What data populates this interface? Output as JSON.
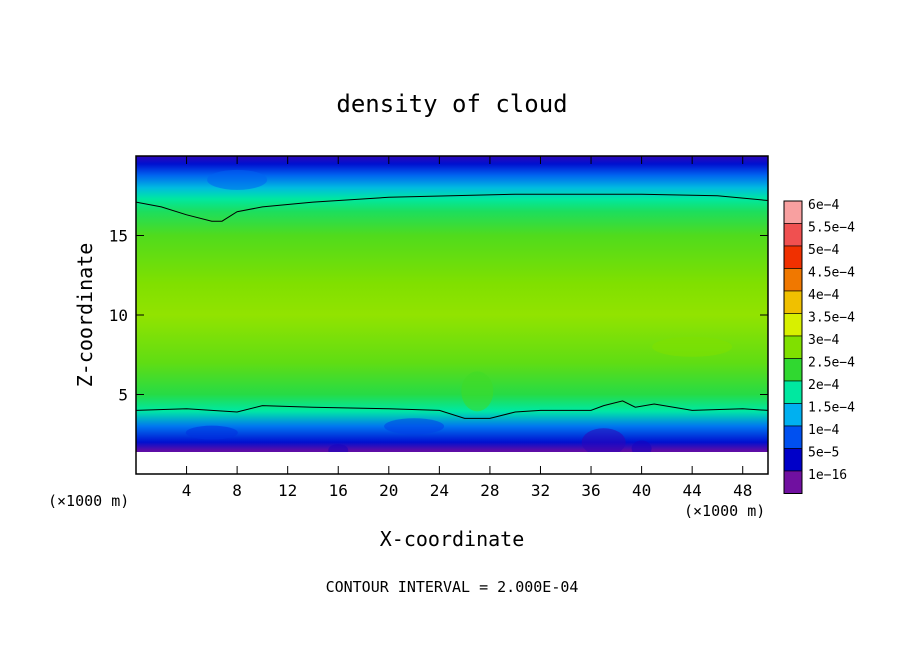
{
  "chart_data": {
    "type": "heatmap",
    "title": "density of cloud",
    "xlabel": "X-coordinate",
    "ylabel": "Z-coordinate",
    "x_unit_left": "(×1000 m)",
    "x_unit_right": "(×1000 m)",
    "footer": "CONTOUR INTERVAL = 2.000E-04",
    "xlim": [
      0,
      50
    ],
    "ylim": [
      0,
      20
    ],
    "x_ticks": [
      4,
      8,
      12,
      16,
      20,
      24,
      28,
      32,
      36,
      40,
      44,
      48
    ],
    "y_ticks": [
      5,
      10,
      15
    ],
    "grid": false,
    "legend_position": "right",
    "colorbar": {
      "labels": [
        "6e−4",
        "5.5e−4",
        "5e−4",
        "4.5e−4",
        "4e−4",
        "3.5e−4",
        "3e−4",
        "2.5e−4",
        "2e−4",
        "1.5e−4",
        "1e−4",
        "5e−5",
        "1e−16"
      ],
      "colors": [
        "#f8a0a0",
        "#f05050",
        "#f03000",
        "#f07800",
        "#f0c000",
        "#d8f000",
        "#80e000",
        "#30d830",
        "#00e8a0",
        "#00b0f0",
        "#0050f0",
        "#0000c8",
        "#7010a0"
      ]
    },
    "profile": {
      "z": [
        0,
        1.0,
        1.5,
        2.0,
        3.0,
        3.9,
        4.0,
        5.0,
        7.0,
        10.0,
        12.0,
        15.0,
        16.5,
        17.3,
        18.0,
        18.8,
        19.5,
        20.0
      ],
      "density": [
        0,
        0,
        1e-05,
        6e-05,
        0.00012,
        0.000195,
        0.0002,
        0.00024,
        0.00028,
        0.00031,
        0.0003,
        0.00027,
        0.00023,
        0.0002,
        0.00016,
        0.00011,
        6e-05,
        3e-05
      ]
    },
    "contour_top": {
      "x": [
        0,
        2,
        4,
        6,
        6.8,
        8,
        10,
        14,
        20,
        30,
        40,
        46,
        50
      ],
      "z": [
        17.1,
        16.8,
        16.3,
        15.9,
        15.9,
        16.5,
        16.8,
        17.1,
        17.4,
        17.6,
        17.6,
        17.5,
        17.2
      ]
    },
    "contour_bottom": {
      "x": [
        0,
        4,
        8,
        10,
        14,
        20,
        24,
        26,
        28,
        30,
        32,
        36,
        37,
        38.5,
        39.5,
        41,
        44,
        48,
        50
      ],
      "z": [
        4.0,
        4.1,
        3.9,
        4.3,
        4.2,
        4.1,
        4.0,
        3.5,
        3.5,
        3.9,
        4.0,
        4.0,
        4.3,
        4.6,
        4.2,
        4.4,
        4.0,
        4.1,
        4.0
      ]
    }
  }
}
